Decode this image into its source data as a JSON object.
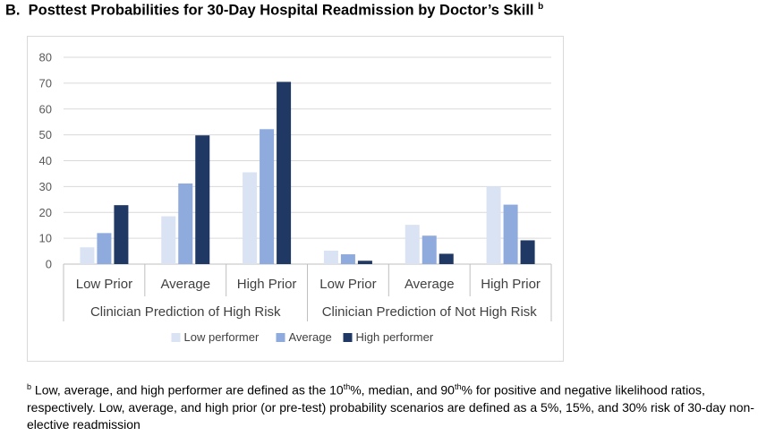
{
  "title": {
    "prefix": "B.",
    "text": "Posttest Probabilities for 30-Day Hospital Readmission by Doctor’s Skill",
    "marker": "b"
  },
  "chart_data": {
    "type": "bar",
    "ylim": [
      0,
      80
    ],
    "yticks": [
      0,
      10,
      20,
      30,
      40,
      50,
      60,
      70,
      80
    ],
    "grid": true,
    "legend_position": "bottom",
    "categories": [
      "Low Prior",
      "Average",
      "High Prior",
      "Low Prior",
      "Average",
      "High Prior"
    ],
    "groups": [
      {
        "label": "Clinician Prediction of High Risk",
        "span": [
          0,
          2
        ]
      },
      {
        "label": "Clinician Prediction of Not High Risk",
        "span": [
          3,
          5
        ]
      }
    ],
    "series": [
      {
        "name": "Low performer",
        "color": "#dae3f3",
        "values": [
          6.5,
          18.5,
          35.5,
          5.2,
          15.2,
          30.0
        ]
      },
      {
        "name": "Average",
        "color": "#8faadc",
        "values": [
          12.0,
          31.2,
          52.2,
          3.8,
          11.0,
          23.0
        ]
      },
      {
        "name": "High performer",
        "color": "#203864",
        "values": [
          22.8,
          49.8,
          70.5,
          1.3,
          4.0,
          9.2
        ]
      }
    ]
  },
  "footnote": {
    "marker": "b",
    "part1": "Low, average, and high performer are defined as the 10",
    "sup1": "th",
    "part2": "%, median, and 90",
    "sup2": "th",
    "part3": "% for positive and negative likelihood ratios, respectively. Low, average, and high prior (or pre-test) probability scenarios are defined as a 5%, 15%, and 30% risk of 30-day non-elective readmission"
  }
}
